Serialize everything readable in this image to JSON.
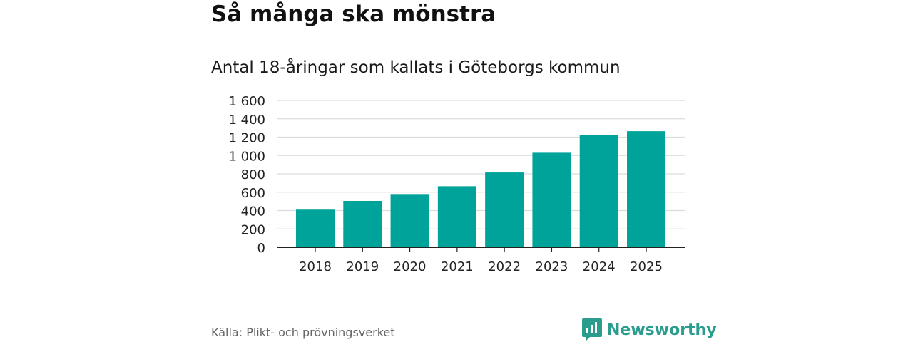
{
  "header": {
    "title": "Så många ska mönstra",
    "subtitle": "Antal 18-åringar som kallats i Göteborgs kommun"
  },
  "footer": {
    "source": "Källa: Plikt- och prövningsverket",
    "brand": "Newsworthy",
    "brand_icon": "bar-chart-logo-icon"
  },
  "colors": {
    "bar": "#00a39a",
    "grid": "#dcdcdc",
    "axis": "#222222",
    "brand": "#2a9d8f"
  },
  "chart_data": {
    "type": "bar",
    "title": "Så många ska mönstra",
    "subtitle": "Antal 18-åringar som kallats i Göteborgs kommun",
    "xlabel": "",
    "ylabel": "",
    "categories": [
      "2018",
      "2019",
      "2020",
      "2021",
      "2022",
      "2023",
      "2024",
      "2025"
    ],
    "values": [
      410,
      505,
      580,
      665,
      815,
      1030,
      1220,
      1265
    ],
    "ylim": [
      0,
      1600
    ],
    "yticks": [
      0,
      200,
      400,
      600,
      800,
      1000,
      1200,
      1400,
      1600
    ],
    "ytick_labels": [
      "0",
      "200",
      "400",
      "600",
      "800",
      "1 000",
      "1 200",
      "1 400",
      "1 600"
    ],
    "grid": true,
    "legend": "none"
  }
}
